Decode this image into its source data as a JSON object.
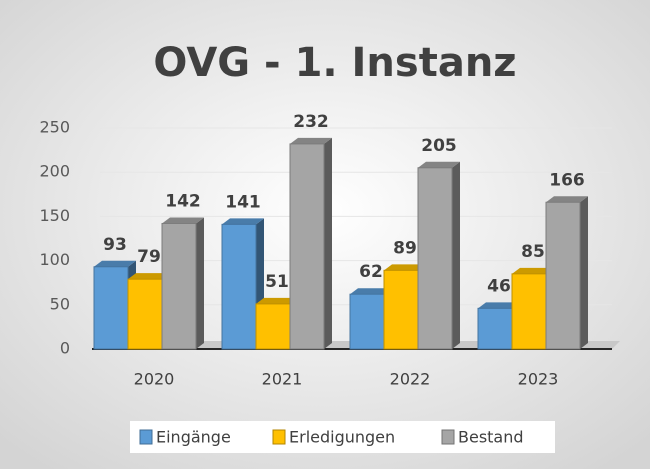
{
  "chart_data": {
    "type": "bar3d",
    "title": "OVG - 1. Instanz",
    "categories": [
      "2020",
      "2021",
      "2022",
      "2023"
    ],
    "series": [
      {
        "name": "Eingänge",
        "color": "#5b9bd5",
        "values": [
          93,
          141,
          62,
          46
        ]
      },
      {
        "name": "Erledigungen",
        "color": "#ffc000",
        "values": [
          79,
          51,
          89,
          85
        ]
      },
      {
        "name": "Bestand",
        "color": "#a5a5a5",
        "values": [
          142,
          232,
          205,
          166
        ]
      }
    ],
    "ylim": [
      0,
      250
    ],
    "yticks": [
      0,
      50,
      100,
      150,
      200,
      250
    ],
    "grid": true,
    "legend": "bottom"
  }
}
